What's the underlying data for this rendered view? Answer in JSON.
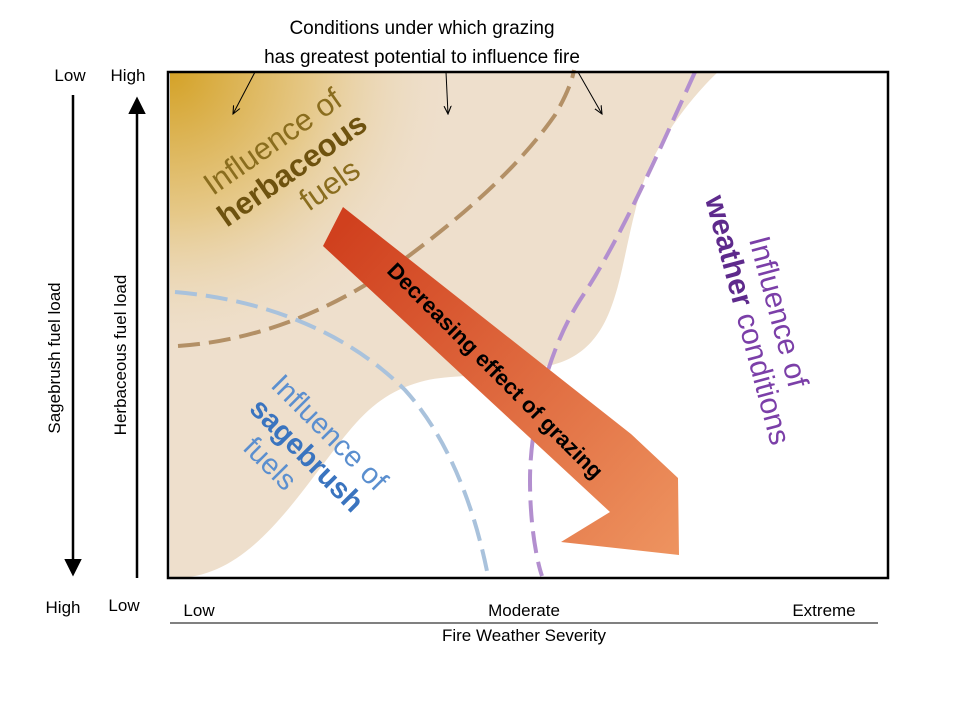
{
  "annotation": {
    "line1": "Conditions under which grazing",
    "line2": "has greatest potential to influence fire"
  },
  "left_axes": {
    "sagebrush": {
      "label": "Sagebrush fuel load",
      "top": "Low",
      "bottom": "High"
    },
    "herbaceous": {
      "label": "Herbaceous fuel load",
      "top": "High",
      "bottom": "Low"
    }
  },
  "x_axis": {
    "label": "Fire Weather Severity",
    "ticks": [
      "Low",
      "Moderate",
      "Extreme"
    ]
  },
  "regions": {
    "herbaceous": {
      "line1": "Influence of",
      "line2": "herbaceous",
      "line3": "fuels",
      "color": "#8a6d1e"
    },
    "sagebrush": {
      "line1": "Influence of",
      "line2": "sagebrush",
      "line3": "fuels",
      "color": "#5b8fcf"
    },
    "weather": {
      "line1": "Influence of",
      "line2": "weather",
      "line3": "conditions",
      "color": "#7b3fa8"
    }
  },
  "arrow": {
    "label": "Decreasing effect of grazing",
    "color_start": "#d0401e",
    "color_end": "#ee9460"
  },
  "colors": {
    "beige": "#eedfcc",
    "gold": "#d4a227",
    "herb_dash": "#b39066",
    "sage_dash": "#a9c2dc",
    "weather_dash": "#b38fcf"
  }
}
